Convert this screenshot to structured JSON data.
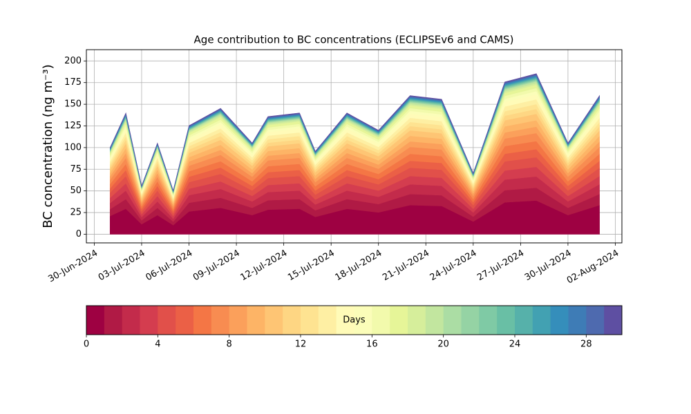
{
  "chart_data": {
    "type": "stacked_area",
    "title": "Age contribution to BC concentrations (ECLIPSEv6 and CAMS)",
    "y_label": "BC concentration (ng m⁻³)",
    "x": [
      "2024-07-01",
      "2024-07-02",
      "2024-07-03",
      "2024-07-04",
      "2024-07-05",
      "2024-07-06",
      "2024-07-08",
      "2024-07-10",
      "2024-07-11",
      "2024-07-13",
      "2024-07-14",
      "2024-07-16",
      "2024-07-18",
      "2024-07-20",
      "2024-07-22",
      "2024-07-24",
      "2024-07-26",
      "2024-07-28",
      "2024-07-30",
      "2024-08-01"
    ],
    "xlim": [
      "2024-06-29T12:00:00Z",
      "2024-08-02T10:00:00Z"
    ],
    "xticks": [
      {
        "value": "2024-06-30",
        "label": "30-Jun-2024"
      },
      {
        "value": "2024-07-03",
        "label": "03-Jul-2024"
      },
      {
        "value": "2024-07-06",
        "label": "06-Jul-2024"
      },
      {
        "value": "2024-07-09",
        "label": "09-Jul-2024"
      },
      {
        "value": "2024-07-12",
        "label": "12-Jul-2024"
      },
      {
        "value": "2024-07-15",
        "label": "15-Jul-2024"
      },
      {
        "value": "2024-07-18",
        "label": "18-Jul-2024"
      },
      {
        "value": "2024-07-21",
        "label": "21-Jul-2024"
      },
      {
        "value": "2024-07-24",
        "label": "24-Jul-2024"
      },
      {
        "value": "2024-07-27",
        "label": "27-Jul-2024"
      },
      {
        "value": "2024-07-30",
        "label": "30-Jul-2024"
      },
      {
        "value": "2024-08-02",
        "label": "02-Aug-2024"
      }
    ],
    "ylim": [
      -10,
      213
    ],
    "yticks": [
      0,
      25,
      50,
      75,
      100,
      125,
      150,
      175,
      200
    ],
    "grid": true,
    "series": [
      {
        "color": "#9e0142",
        "values": [
          21,
          29.4,
          11.6,
          22.1,
          10.5,
          26.3,
          30.5,
          22.1,
          28.4,
          29.4,
          20,
          29.4,
          25.2,
          33.6,
          32.6,
          14.7,
          36.8,
          38.9,
          22.1,
          33.6
        ]
      },
      {
        "color": "#b01a45",
        "values": [
          8,
          11.2,
          4.4,
          8.4,
          4,
          10,
          11.6,
          8.4,
          10.8,
          11.2,
          7.6,
          11.2,
          9.6,
          12.8,
          12.4,
          5.6,
          14,
          14.8,
          8.4,
          12.8
        ]
      },
      {
        "color": "#c32b4b",
        "values": [
          7,
          9.8,
          3.9,
          7.4,
          3.5,
          8.8,
          10.2,
          7.4,
          9.5,
          9.8,
          6.7,
          9.8,
          8.4,
          11.2,
          10.9,
          4.9,
          12.3,
          13,
          7.4,
          11.2
        ]
      },
      {
        "color": "#d43d4f",
        "values": [
          6,
          8.4,
          3.3,
          6.3,
          3,
          7.5,
          8.7,
          6.3,
          8.1,
          8.4,
          5.7,
          8.4,
          7.2,
          9.6,
          9.3,
          4.2,
          10.5,
          11.1,
          6.3,
          9.6
        ]
      },
      {
        "color": "#e1504a",
        "values": [
          6,
          8.4,
          3.3,
          6.3,
          3,
          7.5,
          8.7,
          6.3,
          8.1,
          8.4,
          5.7,
          8.4,
          7.2,
          9.6,
          9.3,
          4.2,
          10.5,
          11.1,
          6.3,
          9.6
        ]
      },
      {
        "color": "#eb6046",
        "values": [
          5,
          7,
          2.8,
          5.3,
          2.5,
          6.3,
          7.3,
          5.3,
          6.8,
          7,
          4.8,
          7,
          6,
          8,
          7.8,
          3.5,
          8.8,
          9.3,
          5.3,
          8
        ]
      },
      {
        "color": "#f47645",
        "values": [
          5,
          7,
          2.8,
          5.3,
          2.5,
          6.3,
          7.3,
          5.3,
          6.8,
          7,
          4.8,
          7,
          6,
          8,
          7.8,
          3.5,
          8.8,
          9.3,
          5.3,
          8
        ]
      },
      {
        "color": "#f88c51",
        "values": [
          5,
          7,
          2.8,
          5.3,
          2.5,
          6.3,
          7.3,
          5.3,
          6.8,
          7,
          4.8,
          7,
          6,
          8,
          7.8,
          3.5,
          8.8,
          9.3,
          5.3,
          8
        ]
      },
      {
        "color": "#fba05b",
        "values": [
          4,
          5.6,
          2.2,
          4.2,
          2,
          5,
          5.8,
          4.2,
          5.4,
          5.6,
          3.8,
          5.6,
          4.8,
          6.4,
          6.2,
          2.8,
          7,
          7.4,
          4.2,
          6.4
        ]
      },
      {
        "color": "#fdb466",
        "values": [
          4,
          5.6,
          2.2,
          4.2,
          2,
          5,
          5.8,
          4.2,
          5.4,
          5.6,
          3.8,
          5.6,
          4.8,
          6.4,
          6.2,
          2.8,
          7,
          7.4,
          4.2,
          6.4
        ]
      },
      {
        "color": "#fec574",
        "values": [
          4,
          5.6,
          2.2,
          4.2,
          2,
          5,
          5.8,
          4.2,
          5.4,
          5.6,
          3.8,
          5.6,
          4.8,
          6.4,
          6.2,
          2.8,
          7,
          7.4,
          4.2,
          6.4
        ]
      },
      {
        "color": "#fed683",
        "values": [
          3,
          4.2,
          1.7,
          3.2,
          1.5,
          3.8,
          4.4,
          3.2,
          4.1,
          4.2,
          2.9,
          4.2,
          3.6,
          4.8,
          4.7,
          2.1,
          5.3,
          5.6,
          3.2,
          4.8
        ]
      },
      {
        "color": "#fee391",
        "values": [
          3,
          4.2,
          1.7,
          3.2,
          1.5,
          3.8,
          4.4,
          3.2,
          4.1,
          4.2,
          2.9,
          4.2,
          3.6,
          4.8,
          4.7,
          2.1,
          5.3,
          5.6,
          3.2,
          4.8
        ]
      },
      {
        "color": "#feefa3",
        "values": [
          3,
          4.2,
          1.7,
          3.2,
          1.5,
          3.8,
          4.4,
          3.2,
          4.1,
          4.2,
          2.9,
          4.2,
          3.6,
          4.8,
          4.7,
          2.1,
          5.3,
          5.6,
          3.2,
          4.8
        ]
      },
      {
        "color": "#fffbb8",
        "values": [
          3,
          4.2,
          1.7,
          3.2,
          1.5,
          3.8,
          4.4,
          3.2,
          4.1,
          4.2,
          2.9,
          4.2,
          3.6,
          4.8,
          4.7,
          2.1,
          5.3,
          5.6,
          3.2,
          4.8
        ]
      },
      {
        "color": "#fbfdb9",
        "values": [
          2,
          2.8,
          1.1,
          2.1,
          1,
          2.5,
          2.9,
          2.1,
          2.7,
          2.8,
          1.9,
          2.8,
          2.4,
          3.2,
          3.1,
          1.4,
          3.5,
          3.7,
          2.1,
          3.2
        ]
      },
      {
        "color": "#f2faac",
        "values": [
          2,
          2.8,
          1.1,
          2.1,
          1,
          2.5,
          2.9,
          2.1,
          2.7,
          2.8,
          1.9,
          2.8,
          2.4,
          3.2,
          3.1,
          1.4,
          3.5,
          3.7,
          2.1,
          3.2
        ]
      },
      {
        "color": "#e6f598",
        "values": [
          2,
          2.8,
          1.1,
          2.1,
          1,
          2.5,
          2.9,
          2.1,
          2.7,
          2.8,
          1.9,
          2.8,
          2.4,
          3.2,
          3.1,
          1.4,
          3.5,
          3.7,
          2.1,
          3.2
        ]
      },
      {
        "color": "#d6ee9b",
        "values": [
          1,
          1.4,
          0.6,
          1.1,
          0.5,
          1.3,
          1.5,
          1.1,
          1.4,
          1.4,
          1,
          1.4,
          1.2,
          1.6,
          1.6,
          0.7,
          1.8,
          1.9,
          1.1,
          1.6
        ]
      },
      {
        "color": "#c2e69f",
        "values": [
          1,
          1.4,
          0.6,
          1.1,
          0.5,
          1.3,
          1.5,
          1.1,
          1.4,
          1.4,
          1,
          1.4,
          1.2,
          1.6,
          1.6,
          0.7,
          1.8,
          1.9,
          1.1,
          1.6
        ]
      },
      {
        "color": "#abdda4",
        "values": [
          0.5,
          0.7,
          0.3,
          0.5,
          0.3,
          0.6,
          0.7,
          0.5,
          0.7,
          0.7,
          0.5,
          0.7,
          0.6,
          0.8,
          0.8,
          0.4,
          0.9,
          0.9,
          0.5,
          0.8
        ]
      },
      {
        "color": "#95d3a4",
        "values": [
          0.5,
          0.7,
          0.3,
          0.5,
          0.3,
          0.6,
          0.7,
          0.5,
          0.7,
          0.7,
          0.5,
          0.7,
          0.6,
          0.8,
          0.8,
          0.4,
          0.9,
          0.9,
          0.5,
          0.8
        ]
      },
      {
        "color": "#7fcaa5",
        "values": [
          0.5,
          0.7,
          0.3,
          0.5,
          0.3,
          0.6,
          0.7,
          0.5,
          0.7,
          0.7,
          0.5,
          0.7,
          0.6,
          0.8,
          0.8,
          0.4,
          0.9,
          0.9,
          0.5,
          0.8
        ]
      },
      {
        "color": "#69bfa5",
        "values": [
          0.5,
          0.7,
          0.3,
          0.5,
          0.3,
          0.6,
          0.7,
          0.5,
          0.7,
          0.7,
          0.5,
          0.7,
          0.6,
          0.8,
          0.8,
          0.4,
          0.9,
          0.9,
          0.5,
          0.8
        ]
      },
      {
        "color": "#56b1aa",
        "values": [
          0.5,
          0.7,
          0.3,
          0.5,
          0.3,
          0.6,
          0.7,
          0.5,
          0.7,
          0.7,
          0.5,
          0.7,
          0.6,
          0.8,
          0.8,
          0.4,
          0.9,
          0.9,
          0.5,
          0.8
        ]
      },
      {
        "color": "#42a1b2",
        "values": [
          0.5,
          0.7,
          0.3,
          0.5,
          0.3,
          0.6,
          0.7,
          0.5,
          0.7,
          0.7,
          0.5,
          0.7,
          0.6,
          0.8,
          0.8,
          0.4,
          0.9,
          0.9,
          0.5,
          0.8
        ]
      },
      {
        "color": "#358ebb",
        "values": [
          0.5,
          0.7,
          0.3,
          0.5,
          0.3,
          0.6,
          0.7,
          0.5,
          0.7,
          0.7,
          0.5,
          0.7,
          0.6,
          0.8,
          0.8,
          0.4,
          0.9,
          0.9,
          0.5,
          0.8
        ]
      },
      {
        "color": "#3e7cb6",
        "values": [
          0.5,
          0.7,
          0.3,
          0.5,
          0.3,
          0.6,
          0.7,
          0.5,
          0.7,
          0.7,
          0.5,
          0.7,
          0.6,
          0.8,
          0.8,
          0.4,
          0.9,
          0.9,
          0.5,
          0.8
        ]
      },
      {
        "color": "#4e6aaf",
        "values": [
          0.5,
          0.7,
          0.3,
          0.5,
          0.3,
          0.6,
          0.7,
          0.5,
          0.7,
          0.7,
          0.5,
          0.7,
          0.6,
          0.8,
          0.8,
          0.4,
          0.9,
          0.9,
          0.5,
          0.8
        ]
      },
      {
        "color": "#5e4fa2",
        "values": [
          0.5,
          0.7,
          0.3,
          0.5,
          0.3,
          0.6,
          0.7,
          0.5,
          0.7,
          0.7,
          0.5,
          0.7,
          0.6,
          0.8,
          0.8,
          0.4,
          0.9,
          0.9,
          0.5,
          0.8
        ]
      }
    ],
    "colorbar": {
      "label": "Days",
      "lim": [
        0,
        30
      ],
      "ticks": [
        0,
        4,
        8,
        12,
        16,
        20,
        24,
        28
      ]
    }
  }
}
